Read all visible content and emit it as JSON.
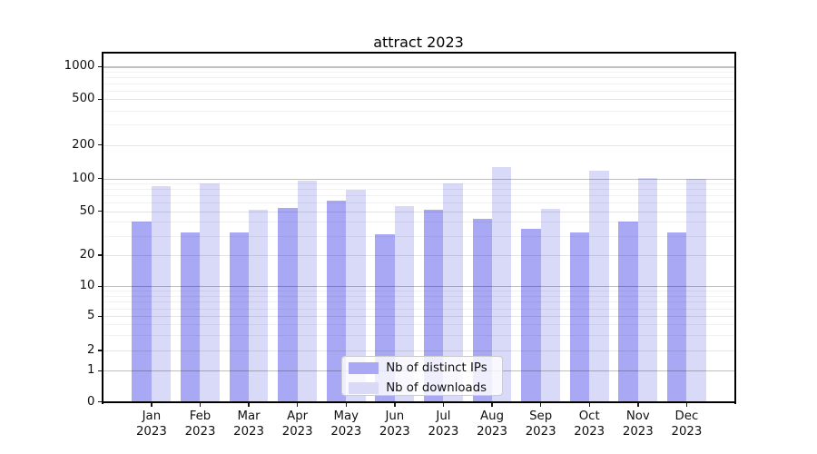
{
  "title": "attract 2023",
  "chart_data": {
    "type": "bar",
    "title": "attract 2023",
    "categories": [
      "Jan",
      "Feb",
      "Mar",
      "Apr",
      "May",
      "Jun",
      "Jul",
      "Aug",
      "Sep",
      "Oct",
      "Nov",
      "Dec"
    ],
    "year_label": "2023",
    "series": [
      {
        "name": "Nb of distinct IPs",
        "color": "#a8a8f4",
        "values": [
          40,
          32,
          32,
          54,
          63,
          31,
          52,
          43,
          35,
          32,
          40,
          32
        ]
      },
      {
        "name": "Nb of downloads",
        "color": "#d9d9f8",
        "values": [
          85,
          90,
          52,
          96,
          79,
          56,
          91,
          127,
          53,
          117,
          101,
          100
        ]
      }
    ],
    "yscale": "symlog",
    "yticks": [
      0,
      1,
      2,
      5,
      10,
      20,
      50,
      100,
      200,
      500,
      1000
    ],
    "ylim": [
      0,
      1340
    ],
    "xlabel": "",
    "ylabel": "",
    "grid": true,
    "legend_position": "lower center"
  }
}
